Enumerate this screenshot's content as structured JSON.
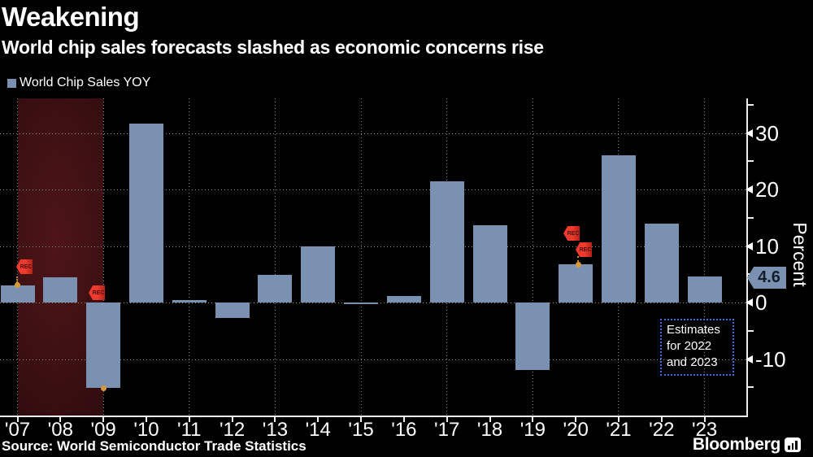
{
  "header": {
    "title": "Weakening",
    "subtitle": "World chip sales forecasts slashed as economic concerns rise"
  },
  "legend": {
    "label": "World Chip Sales YOY",
    "swatch_color": "#7b91b2"
  },
  "chart_data": {
    "type": "bar",
    "title": "Weakening",
    "subtitle": "World chip sales forecasts slashed as economic concerns rise",
    "series_name": "World Chip Sales YOY",
    "categories": [
      "'07",
      "'08",
      "'09",
      "'10",
      "'11",
      "'12",
      "'13",
      "'14",
      "'15",
      "'16",
      "'17",
      "'18",
      "'19",
      "'20",
      "'21",
      "'22",
      "'23"
    ],
    "values": [
      3.0,
      4.5,
      -15.1,
      31.6,
      0.4,
      -2.7,
      4.9,
      9.9,
      -0.3,
      1.2,
      21.5,
      13.7,
      -11.9,
      6.7,
      26.1,
      13.9,
      4.6
    ],
    "ylabel": "Percent",
    "y_ticks": [
      30,
      20,
      10,
      0,
      -10
    ],
    "ylim": [
      -20,
      36
    ],
    "grid": "dotted",
    "bar_color": "#7b91b2",
    "legend_position": "top-left",
    "recession_band": {
      "from": "'07",
      "to": "'09"
    },
    "rec_flags": [
      {
        "label": "REC",
        "at": "'07"
      },
      {
        "label": "REC",
        "at": "'09"
      },
      {
        "label": "REC",
        "at": "'20"
      },
      {
        "label": "REC",
        "at": "'20"
      }
    ],
    "last_value_badge": "4.6",
    "annotation_box": {
      "text": "Estimates for 2022 and 2023"
    }
  },
  "axis": {
    "percent_label": "Percent",
    "badge_value": "4.6"
  },
  "annotations": {
    "rec_label": "REC",
    "estimates_line1": "Estimates",
    "estimates_line2": "for 2022",
    "estimates_line3": "and 2023"
  },
  "footer": {
    "source": "Source: World Semiconductor Trade Statistics",
    "brand": "Bloomberg"
  }
}
